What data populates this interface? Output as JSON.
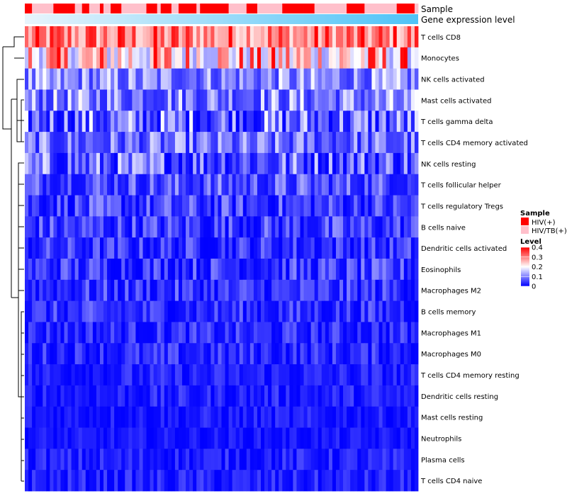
{
  "chart_data": {
    "type": "heatmap",
    "annotations": {
      "sample_label": "Sample",
      "level_label": "Gene expression level"
    },
    "column_samples": [
      "HIV(+)",
      "HIV(+)",
      "HIV/TB(+)",
      "HIV/TB(+)",
      "HIV/TB(+)",
      "HIV/TB(+)",
      "HIV/TB(+)",
      "HIV/TB(+)",
      "HIV(+)",
      "HIV(+)",
      "HIV(+)",
      "HIV(+)",
      "HIV(+)",
      "HIV(+)",
      "HIV/TB(+)",
      "HIV/TB(+)",
      "HIV(+)",
      "HIV(+)",
      "HIV/TB(+)",
      "HIV/TB(+)",
      "HIV/TB(+)",
      "HIV(+)",
      "HIV/TB(+)",
      "HIV/TB(+)",
      "HIV(+)",
      "HIV(+)",
      "HIV(+)",
      "HIV/TB(+)",
      "HIV/TB(+)",
      "HIV/TB(+)",
      "HIV/TB(+)",
      "HIV/TB(+)",
      "HIV/TB(+)",
      "HIV/TB(+)",
      "HIV(+)",
      "HIV(+)",
      "HIV(+)",
      "HIV/TB(+)",
      "HIV(+)",
      "HIV(+)",
      "HIV(+)",
      "HIV/TB(+)",
      "HIV/TB(+)",
      "HIV(+)",
      "HIV(+)",
      "HIV(+)",
      "HIV(+)",
      "HIV(+)",
      "HIV/TB(+)",
      "HIV(+)",
      "HIV(+)",
      "HIV(+)",
      "HIV(+)",
      "HIV(+)",
      "HIV(+)",
      "HIV(+)",
      "HIV(+)",
      "HIV/TB(+)",
      "HIV/TB(+)",
      "HIV/TB(+)",
      "HIV/TB(+)",
      "HIV/TB(+)",
      "HIV(+)",
      "HIV(+)",
      "HIV(+)",
      "HIV/TB(+)",
      "HIV/TB(+)",
      "HIV/TB(+)",
      "HIV/TB(+)",
      "HIV/TB(+)",
      "HIV/TB(+)",
      "HIV/TB(+)",
      "HIV(+)",
      "HIV(+)",
      "HIV(+)",
      "HIV(+)",
      "HIV(+)",
      "HIV(+)",
      "HIV(+)",
      "HIV(+)",
      "HIV(+)",
      "HIV/TB(+)",
      "HIV/TB(+)",
      "HIV/TB(+)",
      "HIV/TB(+)",
      "HIV/TB(+)",
      "HIV/TB(+)",
      "HIV/TB(+)",
      "HIV/TB(+)",
      "HIV/TB(+)",
      "HIV(+)",
      "HIV(+)",
      "HIV(+)",
      "HIV(+)",
      "HIV(+)",
      "HIV/TB(+)",
      "HIV/TB(+)",
      "HIV/TB(+)",
      "HIV/TB(+)",
      "HIV/TB(+)",
      "HIV/TB(+)",
      "HIV/TB(+)",
      "HIV/TB(+)",
      "HIV/TB(+)",
      "HIV(+)",
      "HIV(+)",
      "HIV(+)",
      "HIV(+)",
      "HIV(+)",
      "HIV/TB(+)"
    ],
    "rows": [
      "T cells CD8",
      "Monocytes",
      "NK cells activated",
      "Mast cells activated",
      "T cells gamma delta",
      "T cells CD4 memory activated",
      "NK cells resting",
      "T cells follicular helper",
      "T cells regulatory  Tregs",
      "B cells naive",
      "Dendritic cells activated",
      "Eosinophils",
      "Macrophages M2",
      "B cells memory",
      "Macrophages M1",
      "Macrophages M0",
      "T cells CD4 memory resting",
      "Dendritic cells resting",
      "Mast cells resting",
      "Neutrophils",
      "Plasma cells",
      "T cells CD4 naive"
    ],
    "row_value_ranges": [
      [
        0.22,
        0.42
      ],
      [
        0.12,
        0.42
      ],
      [
        0.04,
        0.2
      ],
      [
        0.03,
        0.21
      ],
      [
        0.0,
        0.21
      ],
      [
        0.02,
        0.17
      ],
      [
        0.0,
        0.19
      ],
      [
        0.01,
        0.14
      ],
      [
        0.0,
        0.12
      ],
      [
        0.0,
        0.12
      ],
      [
        0.0,
        0.1
      ],
      [
        0.0,
        0.11
      ],
      [
        0.0,
        0.1
      ],
      [
        0.0,
        0.09
      ],
      [
        0.0,
        0.08
      ],
      [
        0.0,
        0.08
      ],
      [
        0.0,
        0.06
      ],
      [
        0.0,
        0.06
      ],
      [
        0.0,
        0.05
      ],
      [
        0.0,
        0.04
      ],
      [
        0.0,
        0.06
      ],
      [
        0.0,
        0.06
      ]
    ],
    "scale": {
      "min": 0,
      "max": 0.4,
      "ticks": [
        "0.4",
        "0.3",
        "0.2",
        "0.1",
        "0"
      ]
    },
    "legend": {
      "sample_title": "Sample",
      "sample_items": [
        {
          "label": "HIV(+)",
          "color": "#ff0000"
        },
        {
          "label": "HIV/TB(+)",
          "color": "#ffc0cb"
        }
      ],
      "level_title": "Level",
      "placement": "right"
    },
    "colors": {
      "low": "#0000ff",
      "mid": "#ffffff",
      "high": "#ff0000",
      "level_bar_start": "#e8f4fc",
      "level_bar_end": "#4fc3f7"
    }
  }
}
